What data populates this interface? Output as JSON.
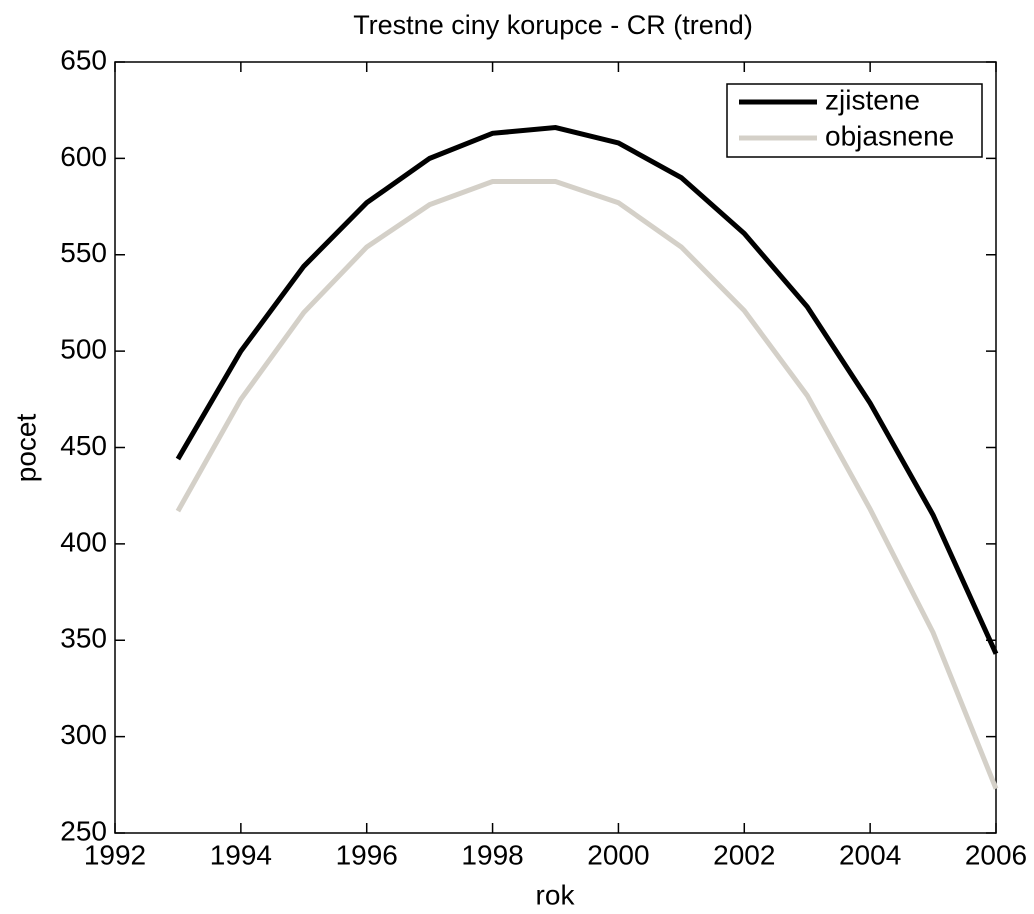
{
  "chart_data": {
    "type": "line",
    "title": "Trestne ciny korupce - CR (trend)",
    "x_label": "rok",
    "y_label": "pocet",
    "x": [
      1993,
      1994,
      1995,
      1996,
      1997,
      1998,
      1999,
      2000,
      2001,
      2002,
      2003,
      2004,
      2005,
      2006
    ],
    "series": [
      {
        "name": "zjistene",
        "color": "#000000",
        "values": [
          444,
          500,
          544,
          577,
          600,
          613,
          616,
          608,
          590,
          561,
          523,
          473,
          415,
          343
        ]
      },
      {
        "name": "objasnene",
        "color": "#d4d0c8",
        "values": [
          417,
          475,
          520,
          554,
          576,
          588,
          588,
          577,
          554,
          521,
          477,
          418,
          354,
          273
        ]
      }
    ],
    "xlim": [
      1992,
      2006
    ],
    "xticks": [
      1992,
      1994,
      1996,
      1998,
      2000,
      2002,
      2004,
      2006
    ],
    "ylim": [
      250,
      650
    ],
    "yticks": [
      250,
      300,
      350,
      400,
      450,
      500,
      550,
      600,
      650
    ],
    "legend": "upper right",
    "grid": false
  }
}
